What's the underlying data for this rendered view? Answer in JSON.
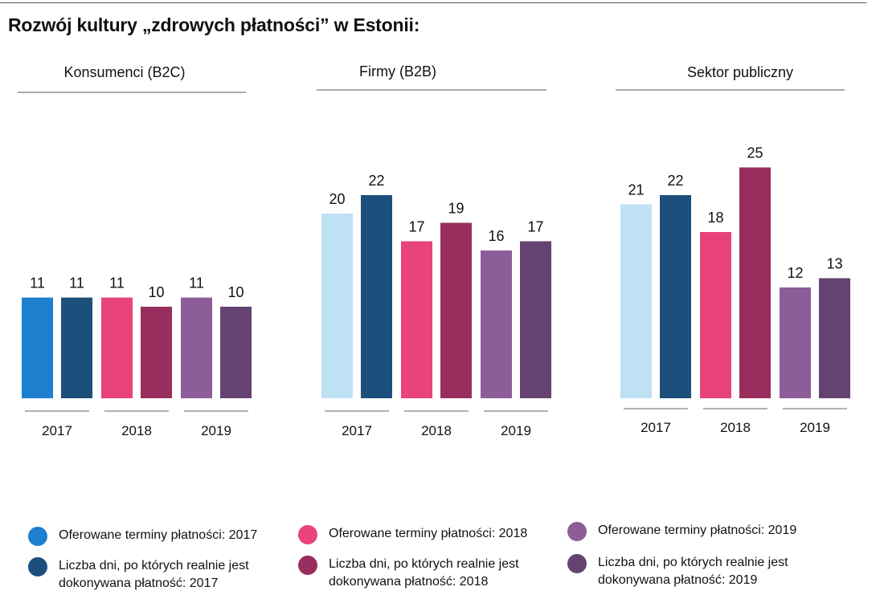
{
  "title": "Rozwój kultury „zdrowych płatności” w Estonii:",
  "colors": {
    "offered_2017": "#1E7FCF",
    "actual_2017": "#1D4F7C",
    "offered_2018": "#E8437A",
    "actual_2018": "#982E5E",
    "offered_2019": "#8D5D99",
    "actual_2019": "#644372",
    "light_2017": "#BEE2F4"
  },
  "chart_data": [
    {
      "type": "bar",
      "title": "Konsumenci (B2C)",
      "categories": [
        "2017",
        "2018",
        "2019"
      ],
      "series": [
        {
          "name": "Oferowane terminy płatności",
          "values": [
            11,
            11,
            11
          ]
        },
        {
          "name": "Liczba dni, po których realnie jest dokonywana płatność",
          "values": [
            11,
            10,
            10
          ]
        }
      ],
      "data_labels": true,
      "grid": false
    },
    {
      "type": "bar",
      "title": "Firmy (B2B)",
      "categories": [
        "2017",
        "2018",
        "2019"
      ],
      "series": [
        {
          "name": "Oferowane terminy płatności",
          "values": [
            20,
            17,
            16
          ]
        },
        {
          "name": "Liczba dni, po których realnie jest dokonywana płatność",
          "values": [
            22,
            19,
            17
          ]
        }
      ],
      "data_labels": true,
      "grid": false
    },
    {
      "type": "bar",
      "title": "Sektor publiczny",
      "categories": [
        "2017",
        "2018",
        "2019"
      ],
      "series": [
        {
          "name": "Oferowane terminy płatności",
          "values": [
            21,
            18,
            12
          ]
        },
        {
          "name": "Liczba dni, po których realnie jest dokonywana płatność",
          "values": [
            22,
            25,
            13
          ]
        }
      ],
      "data_labels": true,
      "grid": false
    }
  ],
  "legend": [
    {
      "color_key": "offered_2017",
      "lines": [
        "Oferowane terminy płatności: 2017"
      ]
    },
    {
      "color_key": "actual_2017",
      "lines": [
        "Liczba dni, po których realnie jest",
        "dokonywana płatność: 2017"
      ]
    },
    {
      "color_key": "offered_2018",
      "lines": [
        "Oferowane terminy płatności: 2018"
      ]
    },
    {
      "color_key": "actual_2018",
      "lines": [
        "Liczba dni, po których realnie jest",
        "dokonywana płatność: 2018"
      ]
    },
    {
      "color_key": "offered_2019",
      "lines": [
        "Oferowane terminy płatności: 2019"
      ]
    },
    {
      "color_key": "actual_2019",
      "lines": [
        "Liczba dni, po których realnie jest",
        "dokonywana płatność: 2019"
      ]
    }
  ]
}
